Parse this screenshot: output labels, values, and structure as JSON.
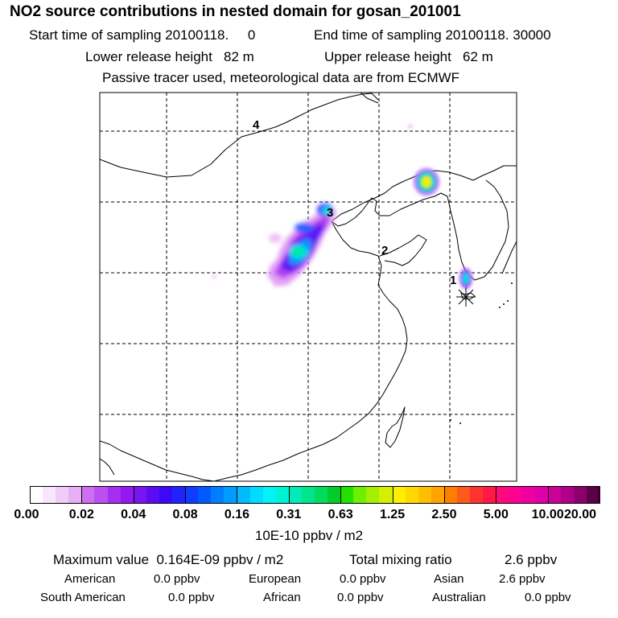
{
  "header": {
    "title": "NO2 source contributions in nested domain for gosan_201001",
    "line_start": "Start time of sampling 20100118.     0",
    "line_end": "End time of sampling 20100118. 30000",
    "line_lower": "Lower release height   82 m",
    "line_upper": "Upper release height   62 m",
    "line_info": "Passive tracer used, meteorological data are from ECMWF"
  },
  "map": {
    "station_labels": [
      "1",
      "2",
      "3",
      "4"
    ],
    "receptor_marker": "asterisk-receptor"
  },
  "colorbar": {
    "labels": [
      "0.00",
      "0.02",
      "0.04",
      "0.08",
      "0.16",
      "0.31",
      "0.63",
      "1.25",
      "2.50",
      "5.00",
      "10.00",
      "20.00"
    ],
    "colors": [
      "#ffffff",
      "#f8e6fb",
      "#f0ccf8",
      "#e8b0f4",
      "#cc6ff0",
      "#bb4ff0",
      "#a52ef0",
      "#9419f0",
      "#7a14f0",
      "#5a0cf4",
      "#3d08f8",
      "#2222ff",
      "#0f3cff",
      "#005aff",
      "#007eff",
      "#009cff",
      "#00bcff",
      "#00dcff",
      "#00f4f4",
      "#00f2d4",
      "#00ecb4",
      "#00e48a",
      "#00dc60",
      "#00cc2a",
      "#22e000",
      "#70ee00",
      "#a4ee00",
      "#d4f000",
      "#fff000",
      "#ffd800",
      "#ffbe00",
      "#ffa400",
      "#ff7e00",
      "#ff5a1e",
      "#ff3232",
      "#ff1a46",
      "#ff0a7a",
      "#ff0090",
      "#f000a0",
      "#e000a8",
      "#cc0096",
      "#b0008a",
      "#8c006e",
      "#5a0046"
    ],
    "unit": "10E-10 ppbv / m2"
  },
  "stats": {
    "max_line": "Maximum value  0.164E-09 ppbv / m2",
    "total_label": "Total mixing ratio",
    "total_value": "2.6 ppbv",
    "regions": [
      {
        "name": "American",
        "value": "0.0 ppbv"
      },
      {
        "name": "European",
        "value": "0.0 ppbv"
      },
      {
        "name": "Asian",
        "value": "2.6 ppbv"
      },
      {
        "name": "South American",
        "value": "0.0 ppbv"
      },
      {
        "name": "African",
        "value": "0.0 ppbv"
      },
      {
        "name": "Australian",
        "value": "0.0 ppbv"
      }
    ]
  }
}
